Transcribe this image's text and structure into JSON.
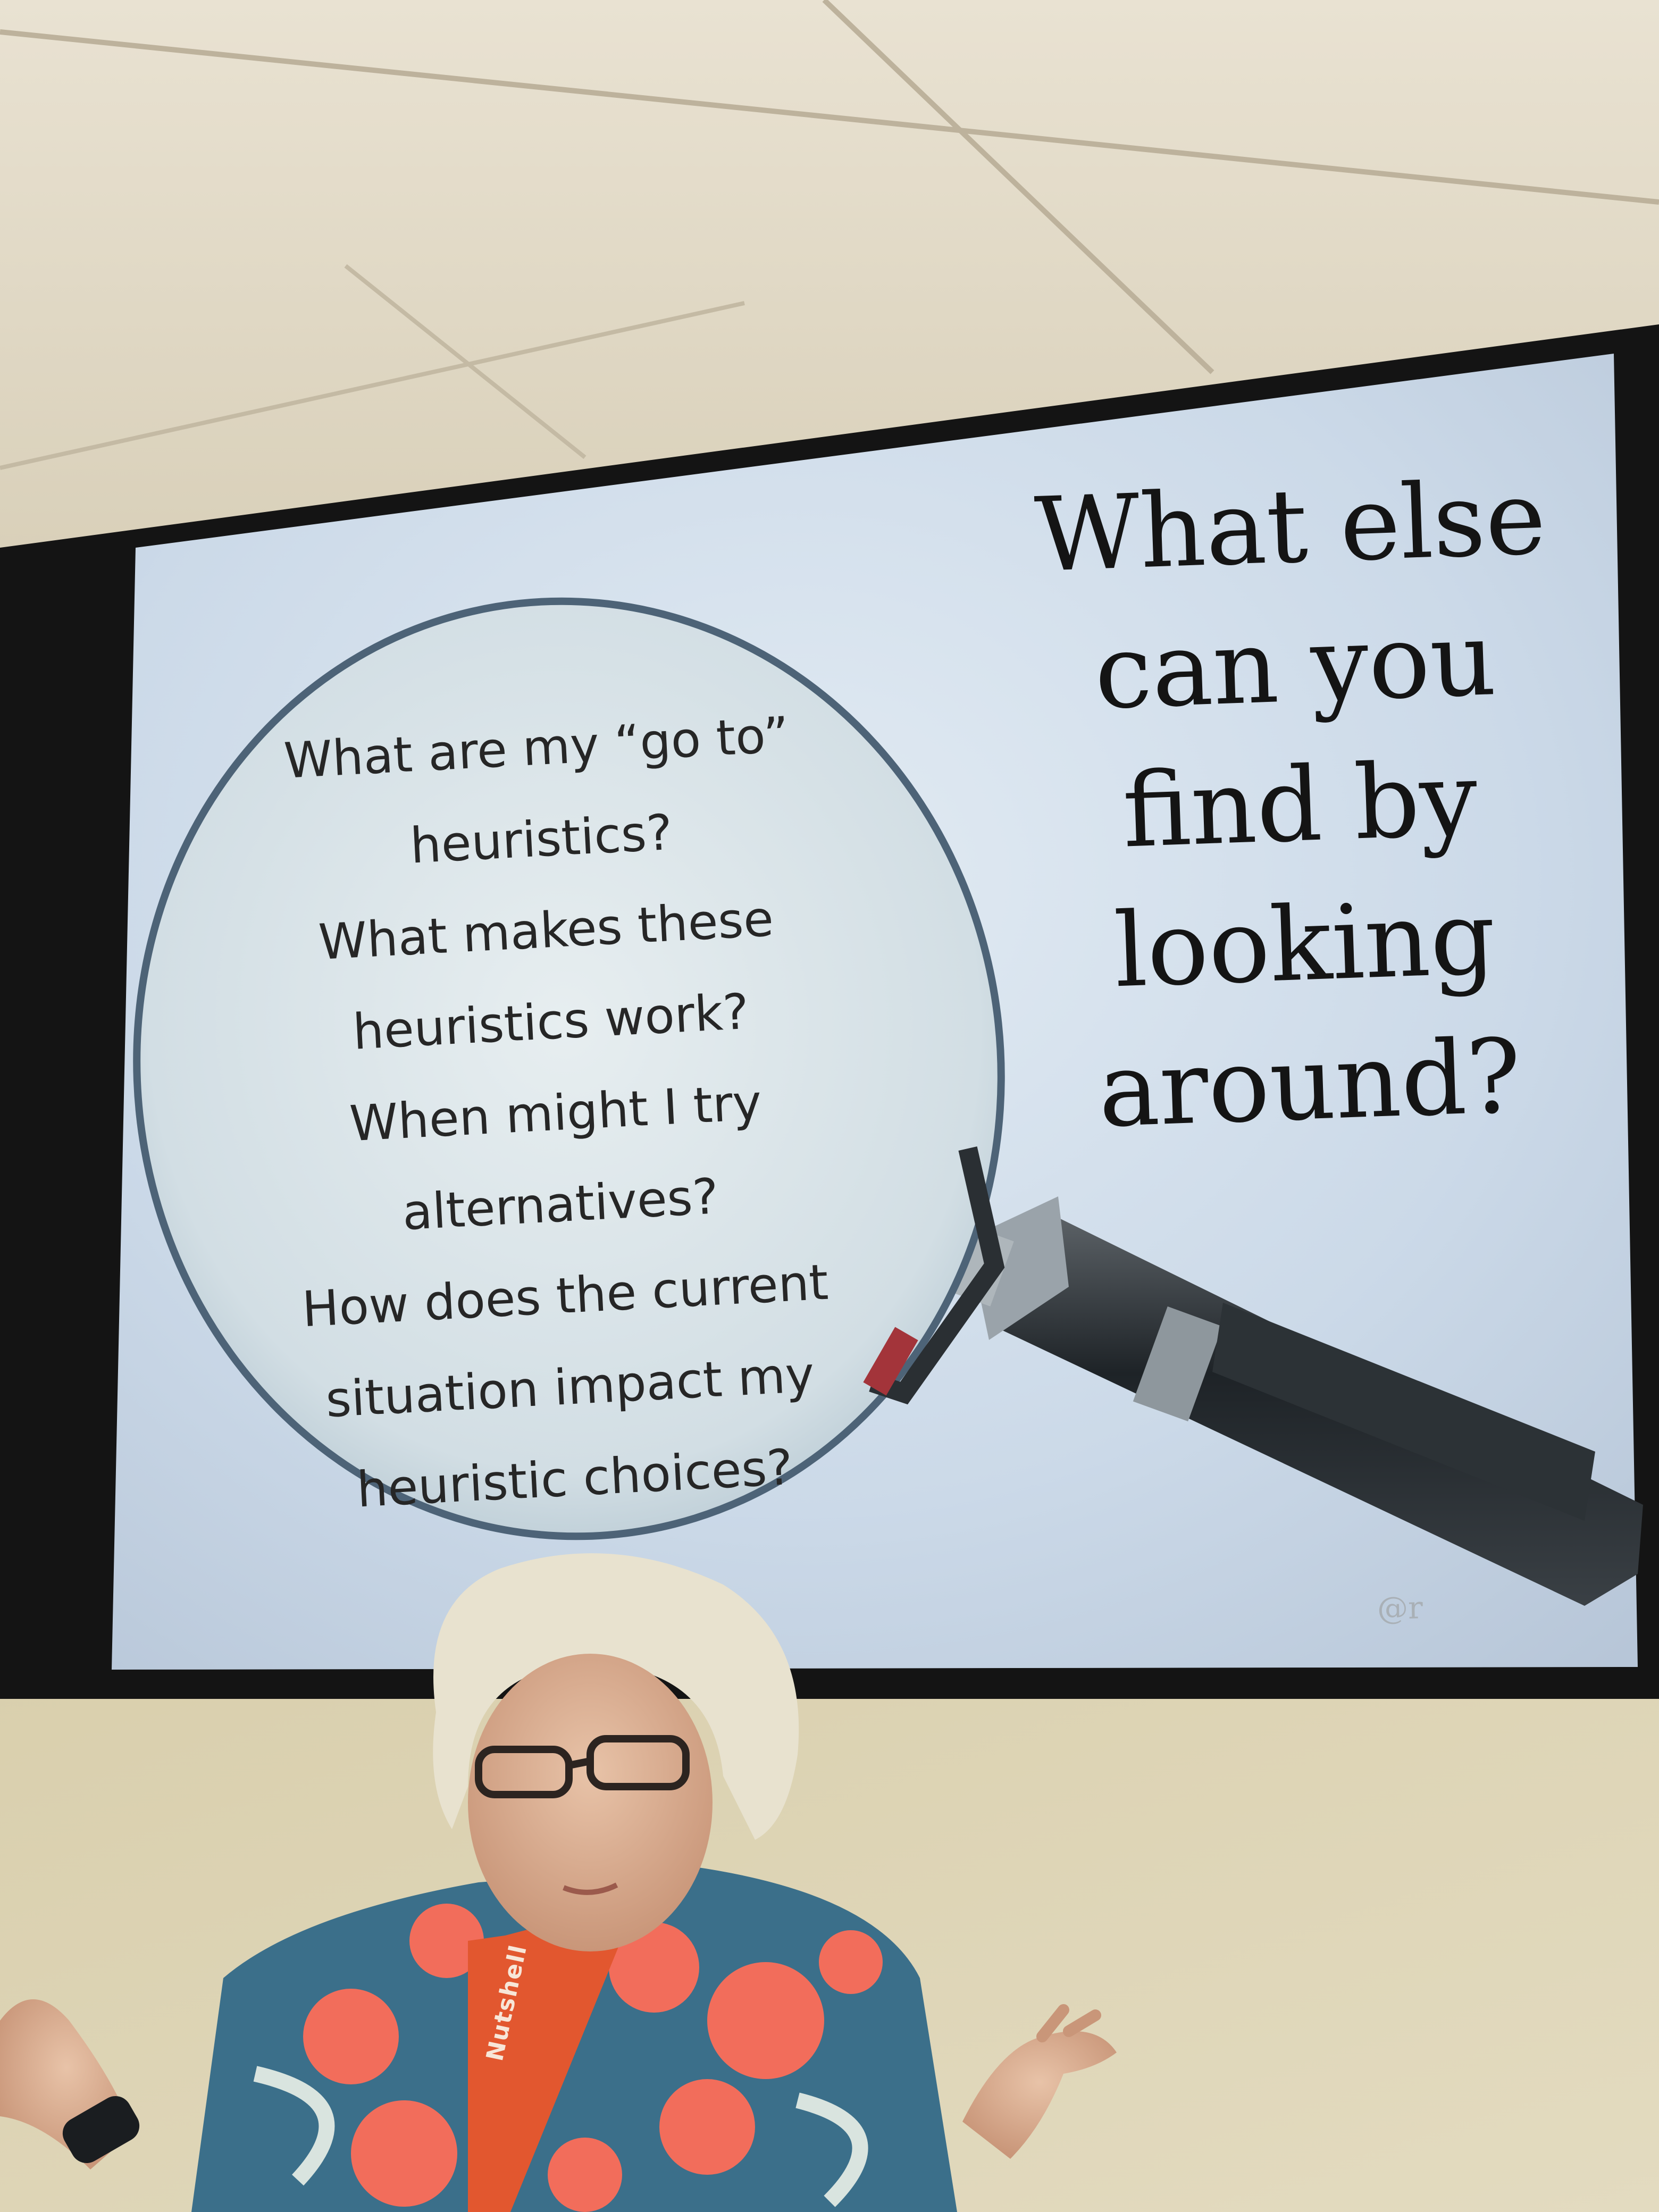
{
  "slide": {
    "bubble_lines": [
      "What are my “go to”",
      "heuristics?",
      "What makes these",
      "heuristics work?",
      "When might I try",
      "alternatives?",
      "How does the current",
      "situation impact my",
      "heuristic choices?"
    ],
    "headline_lines": [
      "What else",
      "can you",
      "find by",
      "looking",
      "around?"
    ],
    "credit": "@r"
  },
  "lanyard": {
    "text": "Nutshell"
  },
  "colors": {
    "ceiling": "#e4dccb",
    "wall": "#dcd3b4",
    "screen_bezel": "#141414",
    "slide_background": "#cfdcea",
    "lens_rim": "#4d6377",
    "handle": "#1f2326",
    "shirt_flower": "#f26d5b",
    "shirt_blue": "#3b6f8a",
    "hair": "#e8e2cf"
  },
  "icons": [
    "magnifying-glass-icon"
  ]
}
